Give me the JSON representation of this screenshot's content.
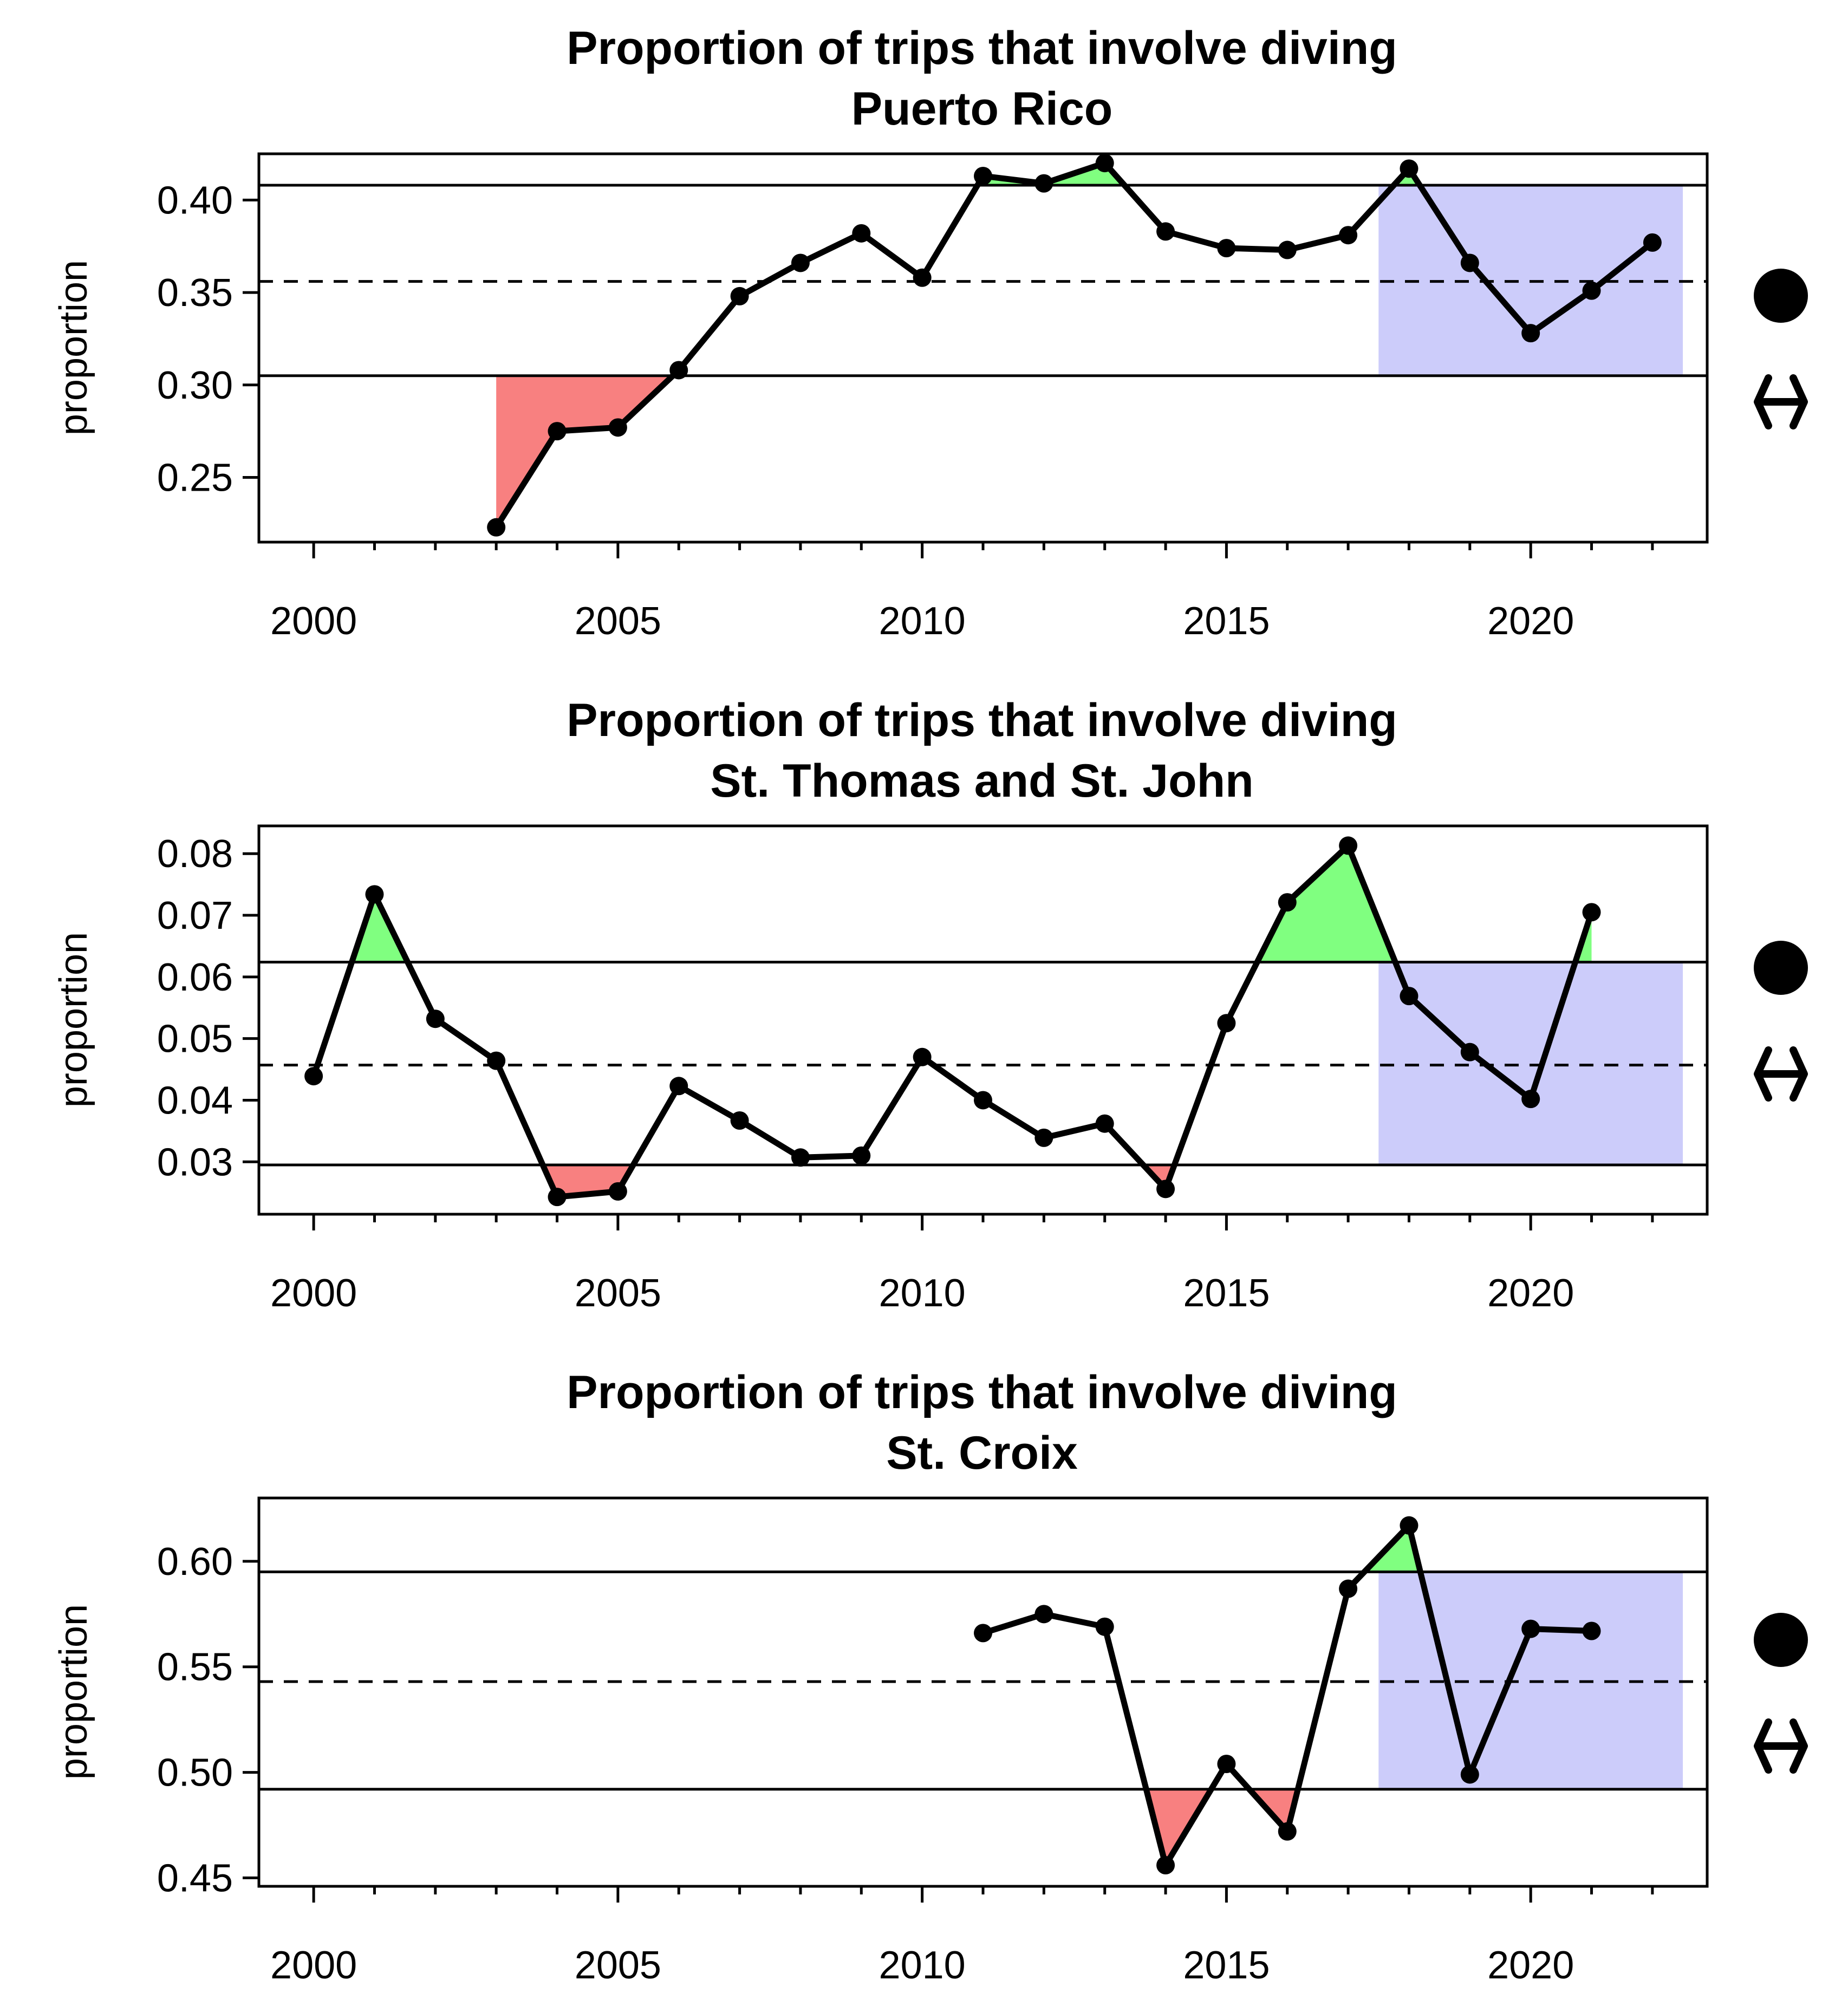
{
  "chart_data": [
    {
      "type": "line",
      "title": "Proportion of trips that involve diving",
      "subtitle": "Puerto Rico",
      "xlabel": "",
      "ylabel": "proportion",
      "xlim": [
        1999.1,
        2022.9
      ],
      "ylim": [
        0.215,
        0.425
      ],
      "xticks": [
        2000,
        2005,
        2010,
        2015,
        2020
      ],
      "xtick_labels": [
        "2000",
        "2005",
        "2010",
        "2015",
        "2020"
      ],
      "yticks": [
        0.25,
        0.3,
        0.35,
        0.4
      ],
      "ytick_labels": [
        "0.25",
        "0.30",
        "0.35",
        "0.40"
      ],
      "x": [
        2003,
        2004,
        2005,
        2006,
        2007,
        2008,
        2009,
        2010,
        2011,
        2012,
        2013,
        2014,
        2015,
        2016,
        2017,
        2018,
        2019,
        2020,
        2021,
        2022
      ],
      "values": [
        0.223,
        0.275,
        0.277,
        0.308,
        0.348,
        0.366,
        0.382,
        0.358,
        0.413,
        0.409,
        0.42,
        0.383,
        0.374,
        0.373,
        0.381,
        0.417,
        0.366,
        0.328,
        0.351,
        0.377
      ],
      "mean": 0.356,
      "upper": 0.408,
      "lower": 0.305,
      "recent_window": [
        2017.5,
        2022.5
      ],
      "grid": false
    },
    {
      "type": "line",
      "title": "Proportion of trips that involve diving",
      "subtitle": "St. Thomas and St. John",
      "xlabel": "",
      "ylabel": "proportion",
      "xlim": [
        1999.1,
        2022.9
      ],
      "ylim": [
        0.0215,
        0.0845
      ],
      "xticks": [
        2000,
        2005,
        2010,
        2015,
        2020
      ],
      "xtick_labels": [
        "2000",
        "2005",
        "2010",
        "2015",
        "2020"
      ],
      "yticks": [
        0.03,
        0.04,
        0.05,
        0.06,
        0.07,
        0.08
      ],
      "ytick_labels": [
        "0.03",
        "0.04",
        "0.05",
        "0.06",
        "0.07",
        "0.08"
      ],
      "x": [
        2000,
        2001,
        2002,
        2003,
        2004,
        2005,
        2006,
        2007,
        2008,
        2009,
        2010,
        2011,
        2012,
        2013,
        2014,
        2015,
        2016,
        2017,
        2018,
        2019,
        2020,
        2021
      ],
      "values": [
        0.0439,
        0.0734,
        0.0532,
        0.0464,
        0.0243,
        0.0252,
        0.0423,
        0.0367,
        0.0307,
        0.031,
        0.047,
        0.04,
        0.0339,
        0.0362,
        0.0256,
        0.0525,
        0.0721,
        0.0813,
        0.0569,
        0.0478,
        0.0402,
        0.0705
      ],
      "mean": 0.0457,
      "upper": 0.0624,
      "lower": 0.0295,
      "recent_window": [
        2017.5,
        2022.5
      ],
      "grid": false
    },
    {
      "type": "line",
      "title": "Proportion of trips that involve diving",
      "subtitle": "St. Croix",
      "xlabel": "",
      "ylabel": "proportion",
      "xlim": [
        1999.1,
        2022.9
      ],
      "ylim": [
        0.446,
        0.63
      ],
      "xticks": [
        2000,
        2005,
        2010,
        2015,
        2020
      ],
      "xtick_labels": [
        "2000",
        "2005",
        "2010",
        "2015",
        "2020"
      ],
      "yticks": [
        0.45,
        0.5,
        0.55,
        0.6
      ],
      "ytick_labels": [
        "0.45",
        "0.50",
        "0.55",
        "0.60"
      ],
      "x": [
        2011,
        2012,
        2013,
        2014,
        2015,
        2016,
        2017,
        2018,
        2019,
        2020,
        2021
      ],
      "values": [
        0.566,
        0.575,
        0.569,
        0.456,
        0.504,
        0.472,
        0.587,
        0.617,
        0.499,
        0.568,
        0.567
      ],
      "mean": 0.543,
      "upper": 0.595,
      "lower": 0.492,
      "recent_window": [
        2017.5,
        2022.5
      ],
      "grid": false
    }
  ],
  "colors": {
    "above": "#80ff80",
    "below": "#f88080",
    "recent": "#ccccfa",
    "line": "#000000"
  },
  "side_icons": [
    "filled-circle-icon",
    "double-arrow-icon"
  ]
}
